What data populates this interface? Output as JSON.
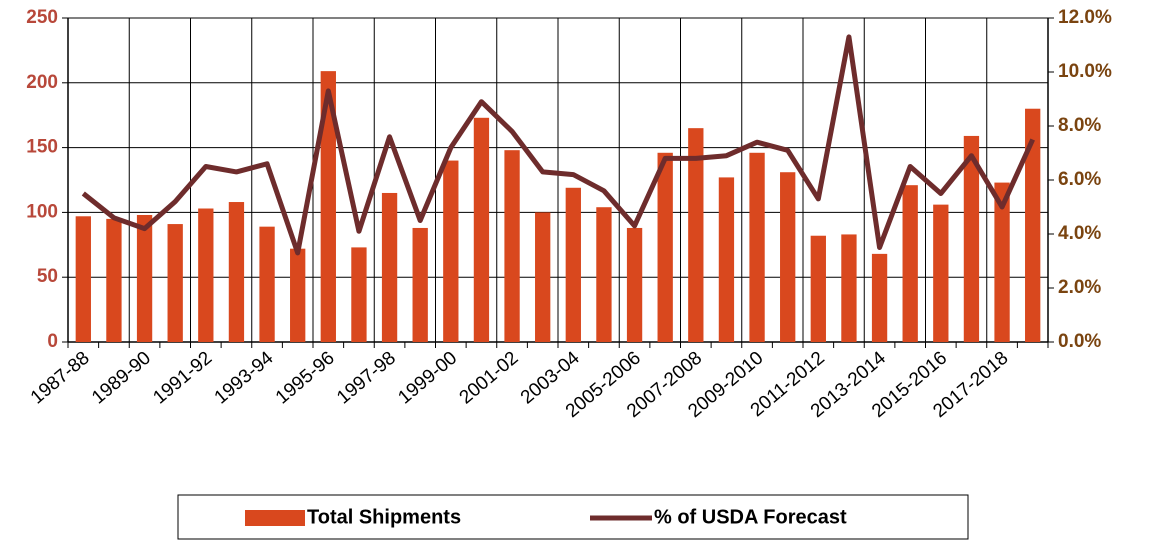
{
  "chart_data": {
    "type": "bar-line",
    "categories": [
      "1987-88",
      null,
      "1989-90",
      null,
      "1991-92",
      null,
      "1993-94",
      null,
      "1995-96",
      null,
      "1997-98",
      null,
      "1999-00",
      null,
      "2001-02",
      null,
      "2003-04",
      null,
      "2005-2006",
      null,
      "2007-2008",
      null,
      "2009-2010",
      null,
      "2011-2012",
      null,
      "2013-2014",
      null,
      "2015-2016",
      null,
      "2017-2018",
      null
    ],
    "series": [
      {
        "name": "Total Shipments",
        "type": "bar",
        "color": "#d9481e",
        "values": [
          97,
          95,
          98,
          91,
          103,
          108,
          89,
          72,
          209,
          73,
          115,
          88,
          140,
          173,
          148,
          100,
          119,
          104,
          88,
          146,
          165,
          127,
          146,
          131,
          82,
          83,
          68,
          121,
          106,
          159,
          123,
          180
        ]
      },
      {
        "name": "% of USDA Forecast",
        "type": "line",
        "axis": "y2",
        "color": "#6e2c2c",
        "values": [
          5.5,
          4.6,
          4.2,
          5.2,
          6.5,
          6.3,
          6.6,
          3.3,
          9.3,
          4.1,
          7.6,
          4.5,
          7.2,
          8.9,
          7.8,
          6.3,
          6.2,
          5.6,
          4.3,
          6.8,
          6.8,
          6.9,
          7.4,
          7.1,
          5.3,
          11.3,
          3.5,
          6.5,
          5.5,
          6.9,
          5.0,
          7.5
        ]
      }
    ],
    "ylim": [
      0,
      250
    ],
    "yticks": [
      0,
      50,
      100,
      150,
      200,
      250
    ],
    "y2lim": [
      0,
      12
    ],
    "y2ticks": [
      {
        "value": 0,
        "label": "0.0%"
      },
      {
        "value": 2,
        "label": "2.0%"
      },
      {
        "value": 4,
        "label": "4.0%"
      },
      {
        "value": 6,
        "label": "6.0%"
      },
      {
        "value": 8,
        "label": "8.0%"
      },
      {
        "value": 10,
        "label": "10.0%"
      },
      {
        "value": 12,
        "label": "12.0%"
      }
    ],
    "grid": true,
    "legend": "bottom"
  }
}
